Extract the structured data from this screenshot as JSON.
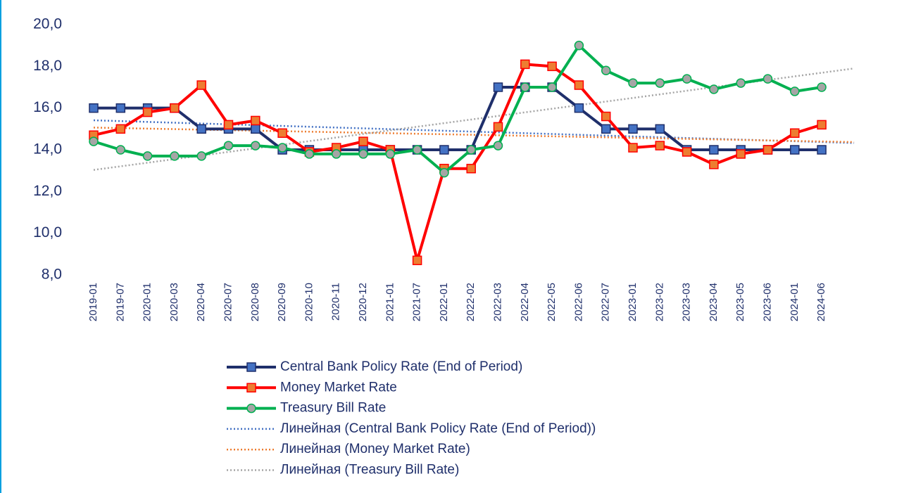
{
  "chart_data": {
    "type": "line",
    "categories": [
      "2019-01",
      "2019-07",
      "2020-01",
      "2020-03",
      "2020-04",
      "2020-07",
      "2020-08",
      "2020-09",
      "2020-10",
      "2020-11",
      "2020-12",
      "2021-01",
      "2021-07",
      "2022-01",
      "2022-02",
      "2022-03",
      "2022-04",
      "2022-05",
      "2022-06",
      "2022-07",
      "2023-01",
      "2023-02",
      "2023-03",
      "2023-04",
      "2023-05",
      "2023-06",
      "2024-01",
      "2024-06"
    ],
    "series": [
      {
        "name": "Central Bank Policy Rate (End of Period)",
        "color": "#1f2f6b",
        "marker": "square",
        "marker_color": "#4472c4",
        "values": [
          16,
          16,
          16,
          16,
          15,
          15,
          15,
          14,
          14,
          14,
          14,
          14,
          14,
          14,
          14,
          17,
          17,
          17,
          16,
          15,
          15,
          15,
          14,
          14,
          14,
          14,
          14,
          14
        ]
      },
      {
        "name": "Money Market Rate",
        "color": "#ff0000",
        "marker": "square",
        "marker_color": "#ed7d31",
        "values": [
          14.7,
          15.0,
          15.8,
          16.0,
          17.1,
          15.2,
          15.4,
          14.8,
          13.9,
          14.1,
          14.4,
          14.0,
          8.7,
          13.1,
          13.1,
          15.1,
          18.1,
          18.0,
          17.1,
          15.6,
          14.1,
          14.2,
          13.9,
          13.3,
          13.8,
          14.0,
          14.8,
          15.2
        ]
      },
      {
        "name": "Treasury Bill Rate",
        "color": "#00b050",
        "marker": "circle",
        "marker_color": "#a5a5a5",
        "values": [
          14.4,
          14.0,
          13.7,
          13.7,
          13.7,
          14.2,
          14.2,
          14.1,
          13.8,
          13.8,
          13.8,
          13.8,
          14.0,
          12.9,
          14.0,
          14.2,
          17.0,
          17.0,
          19.0,
          17.8,
          17.2,
          17.2,
          17.4,
          16.9,
          17.2,
          17.4,
          16.8,
          17.0
        ]
      }
    ],
    "trendlines": [
      {
        "name": "Линейная (Central Bank Policy Rate (End of Period))",
        "color": "#4472c4",
        "of": 0
      },
      {
        "name": "Линейная (Money Market Rate)",
        "color": "#ed7d31",
        "of": 1
      },
      {
        "name": "Линейная (Treasury Bill Rate)",
        "color": "#a5a5a5",
        "of": 2
      }
    ],
    "ylim": [
      8,
      20
    ],
    "yticks": [
      {
        "value": 8,
        "label": "8,0"
      },
      {
        "value": 10,
        "label": "10,0"
      },
      {
        "value": 12,
        "label": "12,0"
      },
      {
        "value": 14,
        "label": "14,0"
      },
      {
        "value": 16,
        "label": "16,0"
      },
      {
        "value": 18,
        "label": "18,0"
      },
      {
        "value": 20,
        "label": "20,0"
      }
    ],
    "grid": false,
    "legend": "bottom"
  }
}
